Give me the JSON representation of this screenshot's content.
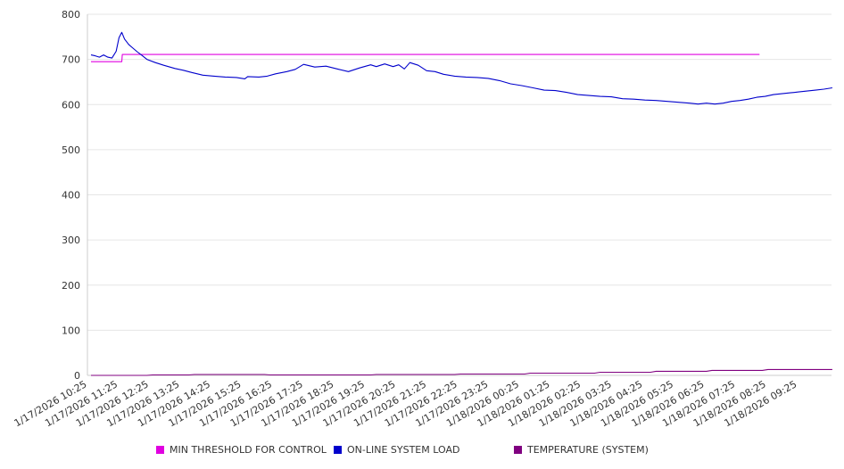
{
  "chart_data": {
    "type": "line",
    "title": "",
    "xlabel": "",
    "ylabel": "",
    "ylim": [
      0,
      800
    ],
    "yticks": [
      0,
      100,
      200,
      300,
      400,
      500,
      600,
      700,
      800
    ],
    "grid": true,
    "legend_position": "bottom",
    "x_categories": [
      "1/17/2026 10:25",
      "1/17/2026 11:25",
      "1/17/2026 12:25",
      "1/17/2026 13:25",
      "1/17/2026 14:25",
      "1/17/2026 15:25",
      "1/17/2026 16:25",
      "1/17/2026 17:25",
      "1/17/2026 18:25",
      "1/17/2026 19:25",
      "1/17/2026 20:25",
      "1/17/2026 21:25",
      "1/17/2026 22:25",
      "1/17/2026 23:25",
      "1/18/2026 00:25",
      "1/18/2026 01:25",
      "1/18/2026 02:25",
      "1/18/2026 03:25",
      "1/18/2026 04:25",
      "1/18/2026 05:25",
      "1/18/2026 06:25",
      "1/18/2026 07:25",
      "1/18/2026 08:25",
      "1/18/2026 09:25"
    ],
    "series": [
      {
        "name": "MIN THRESHOLD FOR CONTROL",
        "color": "#e000e0",
        "points": [
          [
            0,
            695
          ],
          [
            1.1,
            695
          ],
          [
            1.12,
            711
          ],
          [
            23.9,
            711
          ]
        ]
      },
      {
        "name": "ON-LINE SYSTEM LOAD",
        "color": "#0000cc",
        "points": [
          [
            0,
            710
          ],
          [
            0.15,
            708
          ],
          [
            0.3,
            705
          ],
          [
            0.45,
            710
          ],
          [
            0.6,
            705
          ],
          [
            0.75,
            703
          ],
          [
            0.9,
            718
          ],
          [
            1.0,
            748
          ],
          [
            1.1,
            760
          ],
          [
            1.2,
            745
          ],
          [
            1.35,
            733
          ],
          [
            1.5,
            725
          ],
          [
            1.65,
            717
          ],
          [
            1.8,
            710
          ],
          [
            2.0,
            700
          ],
          [
            2.3,
            693
          ],
          [
            2.6,
            687
          ],
          [
            3.0,
            680
          ],
          [
            3.3,
            676
          ],
          [
            3.6,
            671
          ],
          [
            4.0,
            665
          ],
          [
            4.4,
            663
          ],
          [
            4.8,
            661
          ],
          [
            5.2,
            660
          ],
          [
            5.5,
            657
          ],
          [
            5.6,
            662
          ],
          [
            6.0,
            661
          ],
          [
            6.3,
            663
          ],
          [
            6.6,
            668
          ],
          [
            7.0,
            673
          ],
          [
            7.3,
            678
          ],
          [
            7.6,
            689
          ],
          [
            8.0,
            683
          ],
          [
            8.4,
            685
          ],
          [
            8.8,
            679
          ],
          [
            9.2,
            673
          ],
          [
            9.6,
            681
          ],
          [
            10.0,
            688
          ],
          [
            10.2,
            684
          ],
          [
            10.5,
            690
          ],
          [
            10.8,
            684
          ],
          [
            11.0,
            688
          ],
          [
            11.2,
            679
          ],
          [
            11.4,
            693
          ],
          [
            11.7,
            687
          ],
          [
            12.0,
            675
          ],
          [
            12.3,
            673
          ],
          [
            12.6,
            667
          ],
          [
            13.0,
            663
          ],
          [
            13.4,
            661
          ],
          [
            13.8,
            660
          ],
          [
            14.2,
            658
          ],
          [
            14.6,
            653
          ],
          [
            15.0,
            646
          ],
          [
            15.4,
            642
          ],
          [
            15.8,
            637
          ],
          [
            16.2,
            632
          ],
          [
            16.6,
            631
          ],
          [
            17.0,
            627
          ],
          [
            17.4,
            622
          ],
          [
            17.8,
            620
          ],
          [
            18.2,
            618
          ],
          [
            18.6,
            617
          ],
          [
            19.0,
            613
          ],
          [
            19.4,
            612
          ],
          [
            19.8,
            610
          ],
          [
            20.2,
            609
          ],
          [
            20.6,
            607
          ],
          [
            21.0,
            605
          ],
          [
            21.4,
            603
          ],
          [
            21.7,
            601
          ],
          [
            22.0,
            603
          ],
          [
            22.3,
            601
          ],
          [
            22.6,
            603
          ],
          [
            22.9,
            607
          ],
          [
            23.2,
            609
          ],
          [
            23.5,
            612
          ],
          [
            23.8,
            616
          ],
          [
            24.1,
            618
          ],
          [
            24.4,
            622
          ],
          [
            24.7,
            624
          ],
          [
            25.0,
            626
          ],
          [
            25.3,
            628
          ],
          [
            25.6,
            630
          ],
          [
            25.9,
            632
          ],
          [
            26.2,
            634
          ],
          [
            26.5,
            637
          ]
        ]
      },
      {
        "name": "TEMPERATURE (SYSTEM)",
        "color": "#800080",
        "points": [
          [
            0,
            0
          ],
          [
            2.0,
            0
          ],
          [
            2.2,
            1
          ],
          [
            3.5,
            1
          ],
          [
            3.7,
            2
          ],
          [
            6.2,
            2
          ],
          [
            6.4,
            1
          ],
          [
            10.0,
            1
          ],
          [
            10.2,
            2
          ],
          [
            13.0,
            2
          ],
          [
            13.2,
            3
          ],
          [
            15.5,
            3
          ],
          [
            15.7,
            5
          ],
          [
            18.0,
            5
          ],
          [
            18.2,
            7
          ],
          [
            20.0,
            7
          ],
          [
            20.2,
            9
          ],
          [
            22.0,
            9
          ],
          [
            22.2,
            11
          ],
          [
            24.0,
            11
          ],
          [
            24.2,
            13
          ],
          [
            26.5,
            13
          ]
        ]
      }
    ]
  }
}
